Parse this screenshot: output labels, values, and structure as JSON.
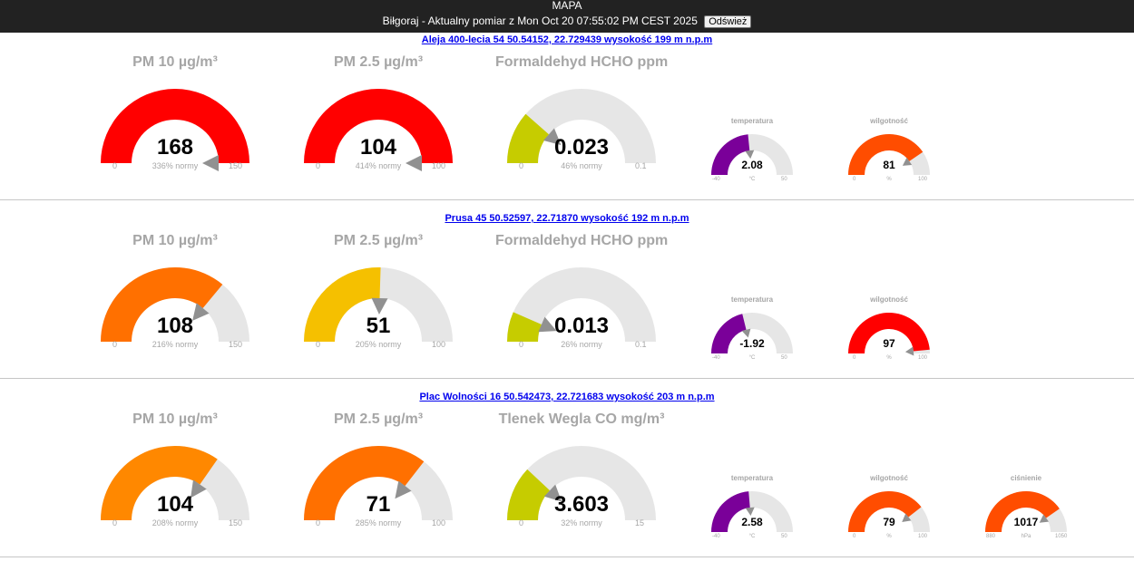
{
  "header": {
    "title": "MAPA",
    "subtitle": "Biłgoraj - Aktualny pomiar z Mon Oct 20 07:55:02 PM CEST 2025",
    "refresh_label": "Odśwież"
  },
  "colors": {
    "track": "#e6e6e6",
    "needle": "#919191"
  },
  "stations": [
    {
      "link": "Aleja 400-lecia 54 50.54152, 22.729439 wysokość 199 m n.p.m",
      "gauges": [
        {
          "title": "PM 10 µg/m³",
          "value": "168",
          "sub": "336% normy",
          "min": "0",
          "max": "150",
          "fraction": 1.0,
          "color": "#ff0000"
        },
        {
          "title": "PM 2.5 µg/m³",
          "value": "104",
          "sub": "414% normy",
          "min": "0",
          "max": "100",
          "fraction": 1.0,
          "color": "#ff0000"
        },
        {
          "title": "Formaldehyd HCHO ppm",
          "value": "0.023",
          "sub": "46% normy",
          "min": "0",
          "max": "0.1",
          "fraction": 0.23,
          "color": "#c6cc00"
        }
      ],
      "small_gauges": [
        {
          "title": "temperatura",
          "value": "2.08",
          "unit": "°C",
          "min": "-40",
          "max": "50",
          "fraction": 0.468,
          "color": "#7a0099"
        },
        {
          "title": "wilgotność",
          "value": "81",
          "unit": "%",
          "min": "0",
          "max": "100",
          "fraction": 0.81,
          "color": "#ff4d00"
        }
      ]
    },
    {
      "link": "Prusa 45 50.52597, 22.71870 wysokość 192 m n.p.m",
      "gauges": [
        {
          "title": "PM 10 µg/m³",
          "value": "108",
          "sub": "216% normy",
          "min": "0",
          "max": "150",
          "fraction": 0.72,
          "color": "#ff7000"
        },
        {
          "title": "PM 2.5 µg/m³",
          "value": "51",
          "sub": "205% normy",
          "min": "0",
          "max": "100",
          "fraction": 0.51,
          "color": "#f5c000"
        },
        {
          "title": "Formaldehyd HCHO ppm",
          "value": "0.013",
          "sub": "26% normy",
          "min": "0",
          "max": "0.1",
          "fraction": 0.13,
          "color": "#c6cc00"
        }
      ],
      "small_gauges": [
        {
          "title": "temperatura",
          "value": "-1.92",
          "unit": "°C",
          "min": "-40",
          "max": "50",
          "fraction": 0.423,
          "color": "#7a0099"
        },
        {
          "title": "wilgotność",
          "value": "97",
          "unit": "%",
          "min": "0",
          "max": "100",
          "fraction": 0.97,
          "color": "#ff0000"
        }
      ]
    },
    {
      "link": "Plac Wolności 16 50.542473, 22.721683 wysokość 203 m n.p.m",
      "gauges": [
        {
          "title": "PM 10 µg/m³",
          "value": "104",
          "sub": "208% normy",
          "min": "0",
          "max": "150",
          "fraction": 0.693,
          "color": "#ff8800"
        },
        {
          "title": "PM 2.5 µg/m³",
          "value": "71",
          "sub": "285% normy",
          "min": "0",
          "max": "100",
          "fraction": 0.71,
          "color": "#ff7000"
        },
        {
          "title": "Tlenek Wegla CO mg/m³",
          "value": "3.603",
          "sub": "32% normy",
          "min": "0",
          "max": "15",
          "fraction": 0.24,
          "color": "#c6cc00"
        }
      ],
      "small_gauges": [
        {
          "title": "temperatura",
          "value": "2.58",
          "unit": "°C",
          "min": "-40",
          "max": "50",
          "fraction": 0.473,
          "color": "#7a0099"
        },
        {
          "title": "wilgotność",
          "value": "79",
          "unit": "%",
          "min": "0",
          "max": "100",
          "fraction": 0.79,
          "color": "#ff4d00"
        },
        {
          "title": "ciśnienie",
          "value": "1017",
          "unit": "hPa",
          "min": "880",
          "max": "1050",
          "fraction": 0.806,
          "color": "#ff4d00"
        }
      ]
    }
  ]
}
